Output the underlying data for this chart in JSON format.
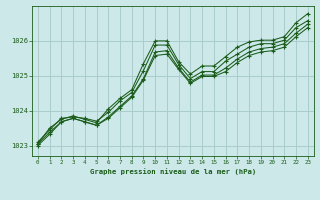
{
  "bg_color": "#cce8e8",
  "grid_color": "#aacccc",
  "line_color": "#1a5c1a",
  "marker_color": "#1a5c1a",
  "xlim": [
    -0.5,
    23.5
  ],
  "ylim": [
    1022.7,
    1027.0
  ],
  "yticks": [
    1023,
    1024,
    1025,
    1026
  ],
  "xticks": [
    0,
    1,
    2,
    3,
    4,
    5,
    6,
    7,
    8,
    9,
    10,
    11,
    12,
    13,
    14,
    15,
    16,
    17,
    18,
    19,
    20,
    21,
    22,
    23
  ],
  "xlabel": "Graphe pression niveau de la mer (hPa)",
  "series": [
    [
      1023.05,
      1023.5,
      1023.75,
      1023.85,
      1023.75,
      1023.65,
      1024.05,
      1024.35,
      1024.6,
      1025.35,
      1026.0,
      1026.0,
      1025.4,
      1025.05,
      1025.28,
      1025.28,
      1025.55,
      1025.82,
      1025.97,
      1026.02,
      1026.02,
      1026.12,
      1026.52,
      1026.78
    ],
    [
      1023.1,
      1023.45,
      1023.78,
      1023.82,
      1023.78,
      1023.7,
      1023.95,
      1024.28,
      1024.52,
      1025.15,
      1025.88,
      1025.88,
      1025.32,
      1024.92,
      1025.12,
      1025.12,
      1025.42,
      1025.62,
      1025.82,
      1025.92,
      1025.92,
      1026.02,
      1026.38,
      1026.58
    ],
    [
      1023.05,
      1023.38,
      1023.68,
      1023.78,
      1023.68,
      1023.58,
      1023.82,
      1024.12,
      1024.42,
      1024.92,
      1025.68,
      1025.72,
      1025.22,
      1024.82,
      1025.02,
      1025.02,
      1025.22,
      1025.48,
      1025.68,
      1025.78,
      1025.82,
      1025.92,
      1026.22,
      1026.48
    ],
    [
      1023.0,
      1023.32,
      1023.68,
      1023.78,
      1023.68,
      1023.58,
      1023.78,
      1024.08,
      1024.38,
      1024.88,
      1025.58,
      1025.62,
      1025.18,
      1024.78,
      1024.98,
      1024.98,
      1025.12,
      1025.38,
      1025.58,
      1025.68,
      1025.72,
      1025.82,
      1026.12,
      1026.38
    ]
  ]
}
